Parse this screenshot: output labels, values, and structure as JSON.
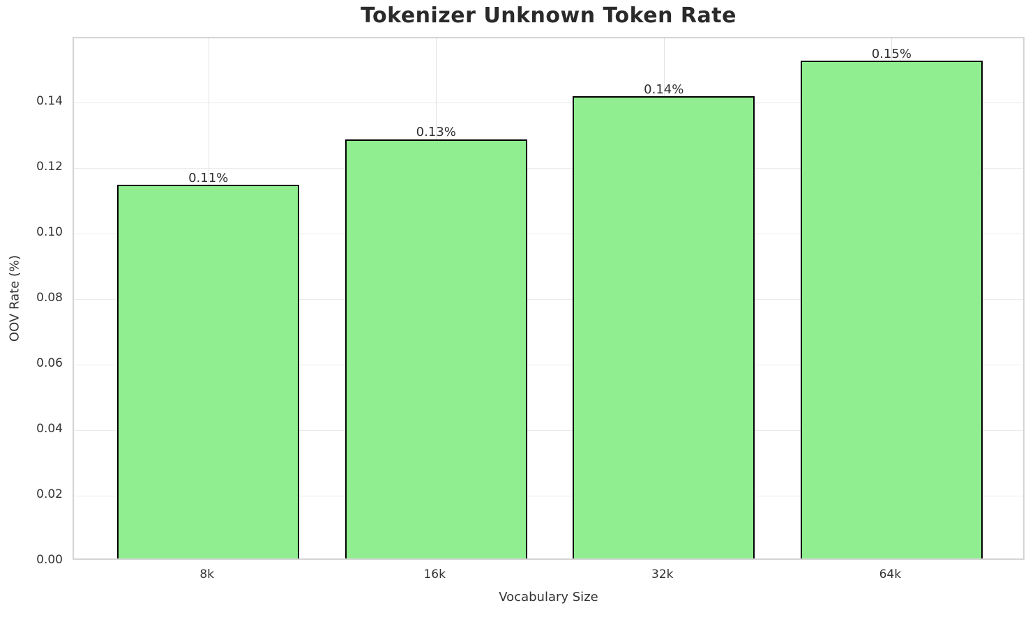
{
  "chart_data": {
    "type": "bar",
    "title": "Tokenizer Unknown Token Rate",
    "xlabel": "Vocabulary Size",
    "ylabel": "OOV Rate (%)",
    "categories": [
      "8k",
      "16k",
      "32k",
      "64k"
    ],
    "values": [
      0.114,
      0.128,
      0.141,
      0.152
    ],
    "bar_labels": [
      "0.11%",
      "0.13%",
      "0.14%",
      "0.15%"
    ],
    "yticks": [
      0.0,
      0.02,
      0.04,
      0.06,
      0.08,
      0.1,
      0.12,
      0.14
    ],
    "ytick_labels": [
      "0.00",
      "0.02",
      "0.04",
      "0.06",
      "0.08",
      "0.10",
      "0.12",
      "0.14"
    ],
    "ylim": [
      0,
      0.1596
    ],
    "grid": true,
    "legend": "none",
    "bar_color": "#90ee90",
    "bar_edge_color": "#000000",
    "background_color": "#ffffff"
  }
}
